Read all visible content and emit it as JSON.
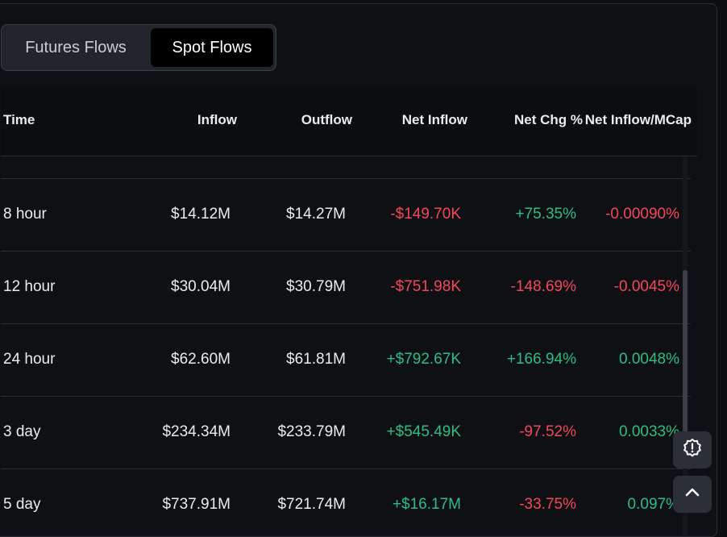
{
  "tabs": {
    "futures_label": "Futures Flows",
    "spot_label": "Spot Flows",
    "active": "Spot Flows"
  },
  "table": {
    "headers": {
      "time": "Time",
      "inflow": "Inflow",
      "outflow": "Outflow",
      "net_inflow": "Net Inflow",
      "net_chg": "Net Chg %",
      "net_inflow_mcap": "Net Inflow/MCap"
    },
    "rows": [
      {
        "time": "8 hour",
        "inflow": "$14.12M",
        "outflow": "$14.27M",
        "net_inflow": "-$149.70K",
        "net_chg": "+75.35%",
        "net_inflow_mcap": "-0.00090%"
      },
      {
        "time": "12 hour",
        "inflow": "$30.04M",
        "outflow": "$30.79M",
        "net_inflow": "-$751.98K",
        "net_chg": "-148.69%",
        "net_inflow_mcap": "-0.0045%"
      },
      {
        "time": "24 hour",
        "inflow": "$62.60M",
        "outflow": "$61.81M",
        "net_inflow": "+$792.67K",
        "net_chg": "+166.94%",
        "net_inflow_mcap": "0.0048%"
      },
      {
        "time": "3 day",
        "inflow": "$234.34M",
        "outflow": "$233.79M",
        "net_inflow": "+$545.49K",
        "net_chg": "-97.52%",
        "net_inflow_mcap": "0.0033%"
      },
      {
        "time": "5 day",
        "inflow": "$737.91M",
        "outflow": "$721.74M",
        "net_inflow": "+$16.17M",
        "net_chg": "-33.75%",
        "net_inflow_mcap": "0.097%"
      }
    ]
  },
  "colors": {
    "negative": "#f6465d",
    "positive": "#2ebd85",
    "background": "#0e1014",
    "text": "#eaecef"
  },
  "floating_buttons": {
    "feedback_icon": "alert-badge-icon",
    "scroll_top_icon": "chevron-up-icon"
  }
}
